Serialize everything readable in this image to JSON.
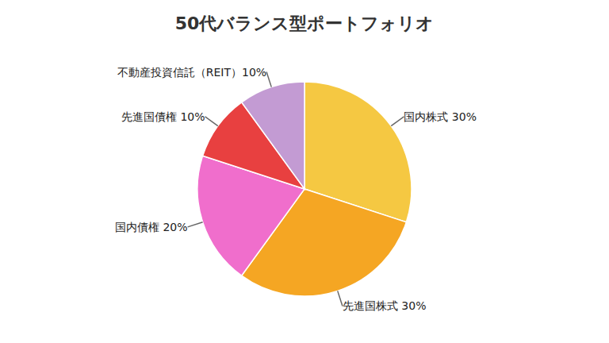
{
  "chart_data": {
    "type": "pie",
    "title": "50代バランス型ポートフォリオ",
    "categories": [
      "国内株式 30%",
      "先進国株式 30%",
      "国内債権 20%",
      "先進国債権 10%",
      "不動産投資信託（REIT）10%"
    ],
    "values": [
      30,
      30,
      20,
      10,
      10
    ],
    "colors": [
      "#f5c842",
      "#f5a623",
      "#f06ecc",
      "#e84040",
      "#c39bd3"
    ]
  }
}
